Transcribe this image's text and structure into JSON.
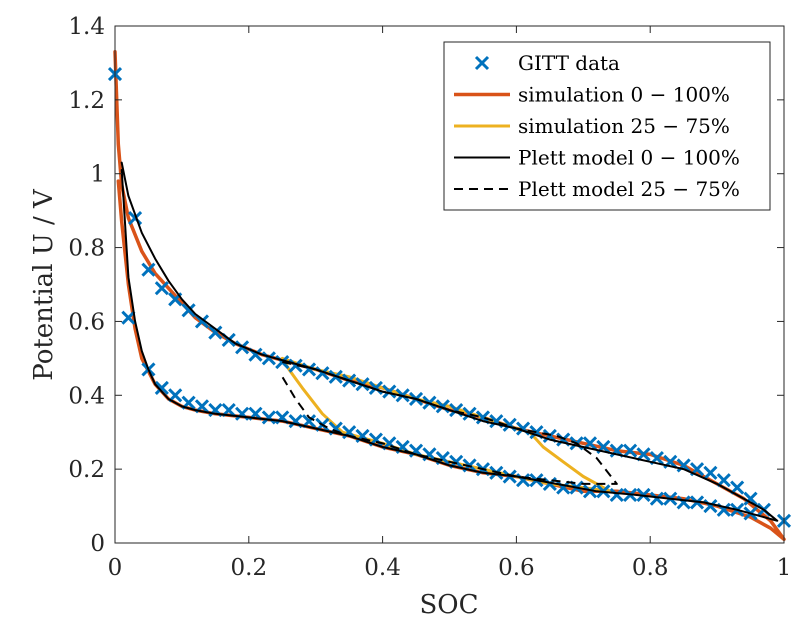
{
  "chart_data": {
    "type": "line",
    "title": "",
    "xlabel": "SOC",
    "ylabel": "Potential U / V",
    "xlim": [
      0,
      1
    ],
    "ylim": [
      0,
      1.4
    ],
    "xticks": [
      "0",
      "0.2",
      "0.4",
      "0.6",
      "0.8",
      "1"
    ],
    "yticks": [
      "0",
      "0.2",
      "0.4",
      "0.6",
      "0.8",
      "1",
      "1.2",
      "1.4"
    ],
    "grid": false,
    "legend_position": "top-right",
    "legend": [
      "GITT data",
      "simulation 0 − 100%",
      "simulation 25 − 75%",
      "Plett model 0 − 100%",
      "Plett model 25 − 75%"
    ],
    "series": [
      {
        "name": "GITT data",
        "style": "markers-x",
        "color": "#0072BD",
        "points": [
          [
            0.0,
            1.27
          ],
          [
            0.03,
            0.88
          ],
          [
            0.05,
            0.74
          ],
          [
            0.07,
            0.69
          ],
          [
            0.09,
            0.66
          ],
          [
            0.11,
            0.63
          ],
          [
            0.13,
            0.6
          ],
          [
            0.15,
            0.57
          ],
          [
            0.17,
            0.55
          ],
          [
            0.19,
            0.53
          ],
          [
            0.21,
            0.51
          ],
          [
            0.23,
            0.5
          ],
          [
            0.25,
            0.49
          ],
          [
            0.27,
            0.48
          ],
          [
            0.29,
            0.47
          ],
          [
            0.31,
            0.46
          ],
          [
            0.33,
            0.45
          ],
          [
            0.35,
            0.44
          ],
          [
            0.37,
            0.43
          ],
          [
            0.39,
            0.42
          ],
          [
            0.41,
            0.41
          ],
          [
            0.43,
            0.4
          ],
          [
            0.45,
            0.39
          ],
          [
            0.47,
            0.38
          ],
          [
            0.49,
            0.37
          ],
          [
            0.51,
            0.36
          ],
          [
            0.53,
            0.35
          ],
          [
            0.55,
            0.34
          ],
          [
            0.57,
            0.33
          ],
          [
            0.59,
            0.32
          ],
          [
            0.61,
            0.31
          ],
          [
            0.63,
            0.3
          ],
          [
            0.65,
            0.29
          ],
          [
            0.67,
            0.28
          ],
          [
            0.69,
            0.27
          ],
          [
            0.71,
            0.27
          ],
          [
            0.73,
            0.26
          ],
          [
            0.75,
            0.25
          ],
          [
            0.77,
            0.25
          ],
          [
            0.79,
            0.24
          ],
          [
            0.81,
            0.23
          ],
          [
            0.83,
            0.22
          ],
          [
            0.85,
            0.21
          ],
          [
            0.87,
            0.2
          ],
          [
            0.89,
            0.19
          ],
          [
            0.91,
            0.17
          ],
          [
            0.93,
            0.15
          ],
          [
            0.95,
            0.12
          ],
          [
            0.97,
            0.09
          ],
          [
            1.0,
            0.06
          ],
          [
            0.02,
            0.61
          ],
          [
            0.05,
            0.47
          ],
          [
            0.07,
            0.42
          ],
          [
            0.09,
            0.4
          ],
          [
            0.11,
            0.38
          ],
          [
            0.13,
            0.37
          ],
          [
            0.15,
            0.36
          ],
          [
            0.17,
            0.36
          ],
          [
            0.19,
            0.35
          ],
          [
            0.21,
            0.35
          ],
          [
            0.23,
            0.34
          ],
          [
            0.25,
            0.34
          ],
          [
            0.27,
            0.33
          ],
          [
            0.29,
            0.33
          ],
          [
            0.31,
            0.32
          ],
          [
            0.33,
            0.31
          ],
          [
            0.35,
            0.3
          ],
          [
            0.37,
            0.29
          ],
          [
            0.39,
            0.28
          ],
          [
            0.41,
            0.27
          ],
          [
            0.43,
            0.26
          ],
          [
            0.45,
            0.25
          ],
          [
            0.47,
            0.24
          ],
          [
            0.49,
            0.23
          ],
          [
            0.51,
            0.22
          ],
          [
            0.53,
            0.21
          ],
          [
            0.55,
            0.2
          ],
          [
            0.57,
            0.19
          ],
          [
            0.59,
            0.18
          ],
          [
            0.61,
            0.17
          ],
          [
            0.63,
            0.17
          ],
          [
            0.65,
            0.16
          ],
          [
            0.67,
            0.15
          ],
          [
            0.69,
            0.15
          ],
          [
            0.71,
            0.14
          ],
          [
            0.73,
            0.14
          ],
          [
            0.75,
            0.13
          ],
          [
            0.77,
            0.13
          ],
          [
            0.79,
            0.13
          ],
          [
            0.81,
            0.12
          ],
          [
            0.83,
            0.12
          ],
          [
            0.85,
            0.11
          ],
          [
            0.87,
            0.11
          ],
          [
            0.89,
            0.1
          ],
          [
            0.91,
            0.09
          ],
          [
            0.93,
            0.09
          ],
          [
            0.95,
            0.08
          ]
        ]
      },
      {
        "name": "simulation 0 − 100%",
        "style": "solid",
        "color": "#D95319",
        "width": 3.5,
        "points": [
          [
            0.0,
            1.33
          ],
          [
            0.005,
            1.08
          ],
          [
            0.01,
            0.97
          ],
          [
            0.02,
            0.88
          ],
          [
            0.04,
            0.79
          ],
          [
            0.06,
            0.73
          ],
          [
            0.08,
            0.69
          ],
          [
            0.1,
            0.65
          ],
          [
            0.12,
            0.61
          ],
          [
            0.15,
            0.57
          ],
          [
            0.18,
            0.54
          ],
          [
            0.22,
            0.51
          ],
          [
            0.26,
            0.49
          ],
          [
            0.3,
            0.47
          ],
          [
            0.35,
            0.44
          ],
          [
            0.4,
            0.42
          ],
          [
            0.45,
            0.39
          ],
          [
            0.5,
            0.36
          ],
          [
            0.55,
            0.34
          ],
          [
            0.6,
            0.31
          ],
          [
            0.65,
            0.29
          ],
          [
            0.7,
            0.27
          ],
          [
            0.75,
            0.25
          ],
          [
            0.8,
            0.24
          ],
          [
            0.85,
            0.21
          ],
          [
            0.88,
            0.18
          ],
          [
            0.91,
            0.15
          ],
          [
            0.94,
            0.12
          ],
          [
            0.96,
            0.09
          ],
          [
            0.98,
            0.06
          ],
          [
            1.0,
            0.01
          ],
          [
            0.98,
            0.04
          ],
          [
            0.95,
            0.07
          ],
          [
            0.9,
            0.1
          ],
          [
            0.85,
            0.12
          ],
          [
            0.8,
            0.13
          ],
          [
            0.75,
            0.14
          ],
          [
            0.7,
            0.14
          ],
          [
            0.65,
            0.16
          ],
          [
            0.6,
            0.18
          ],
          [
            0.55,
            0.19
          ],
          [
            0.5,
            0.21
          ],
          [
            0.45,
            0.24
          ],
          [
            0.4,
            0.26
          ],
          [
            0.35,
            0.29
          ],
          [
            0.3,
            0.31
          ],
          [
            0.25,
            0.33
          ],
          [
            0.2,
            0.34
          ],
          [
            0.15,
            0.35
          ],
          [
            0.12,
            0.36
          ],
          [
            0.1,
            0.37
          ],
          [
            0.08,
            0.39
          ],
          [
            0.06,
            0.43
          ],
          [
            0.04,
            0.5
          ],
          [
            0.03,
            0.58
          ],
          [
            0.02,
            0.7
          ],
          [
            0.01,
            0.87
          ],
          [
            0.005,
            0.98
          ]
        ]
      },
      {
        "name": "simulation 25 − 75%",
        "style": "solid",
        "color": "#EDB120",
        "width": 3,
        "points": [
          [
            0.25,
            0.5
          ],
          [
            0.3,
            0.47
          ],
          [
            0.35,
            0.45
          ],
          [
            0.4,
            0.42
          ],
          [
            0.45,
            0.39
          ],
          [
            0.5,
            0.37
          ],
          [
            0.55,
            0.34
          ],
          [
            0.6,
            0.31
          ],
          [
            0.62,
            0.3
          ],
          [
            0.64,
            0.26
          ],
          [
            0.67,
            0.22
          ],
          [
            0.7,
            0.18
          ],
          [
            0.74,
            0.14
          ],
          [
            0.7,
            0.15
          ],
          [
            0.65,
            0.16
          ],
          [
            0.6,
            0.18
          ],
          [
            0.55,
            0.2
          ],
          [
            0.5,
            0.22
          ],
          [
            0.45,
            0.24
          ],
          [
            0.4,
            0.27
          ],
          [
            0.36,
            0.29
          ],
          [
            0.34,
            0.3
          ],
          [
            0.31,
            0.35
          ],
          [
            0.28,
            0.42
          ],
          [
            0.26,
            0.47
          ],
          [
            0.25,
            0.5
          ]
        ]
      },
      {
        "name": "Plett model 0 − 100%",
        "style": "solid",
        "color": "#000000",
        "width": 2,
        "points": [
          [
            0.01,
            1.03
          ],
          [
            0.02,
            0.94
          ],
          [
            0.04,
            0.84
          ],
          [
            0.06,
            0.77
          ],
          [
            0.08,
            0.71
          ],
          [
            0.1,
            0.66
          ],
          [
            0.12,
            0.62
          ],
          [
            0.15,
            0.58
          ],
          [
            0.18,
            0.54
          ],
          [
            0.22,
            0.51
          ],
          [
            0.26,
            0.49
          ],
          [
            0.3,
            0.47
          ],
          [
            0.35,
            0.44
          ],
          [
            0.4,
            0.41
          ],
          [
            0.45,
            0.39
          ],
          [
            0.5,
            0.36
          ],
          [
            0.55,
            0.33
          ],
          [
            0.6,
            0.31
          ],
          [
            0.65,
            0.28
          ],
          [
            0.7,
            0.26
          ],
          [
            0.75,
            0.24
          ],
          [
            0.8,
            0.22
          ],
          [
            0.85,
            0.2
          ],
          [
            0.9,
            0.16
          ],
          [
            0.94,
            0.12
          ],
          [
            0.97,
            0.09
          ],
          [
            0.99,
            0.06
          ],
          [
            0.97,
            0.07
          ],
          [
            0.93,
            0.09
          ],
          [
            0.88,
            0.11
          ],
          [
            0.83,
            0.12
          ],
          [
            0.78,
            0.13
          ],
          [
            0.72,
            0.14
          ],
          [
            0.66,
            0.16
          ],
          [
            0.6,
            0.18
          ],
          [
            0.55,
            0.19
          ],
          [
            0.5,
            0.21
          ],
          [
            0.45,
            0.24
          ],
          [
            0.4,
            0.26
          ],
          [
            0.35,
            0.29
          ],
          [
            0.3,
            0.31
          ],
          [
            0.25,
            0.33
          ],
          [
            0.2,
            0.34
          ],
          [
            0.15,
            0.35
          ],
          [
            0.12,
            0.36
          ],
          [
            0.1,
            0.37
          ],
          [
            0.08,
            0.39
          ],
          [
            0.06,
            0.43
          ],
          [
            0.05,
            0.47
          ],
          [
            0.04,
            0.52
          ],
          [
            0.03,
            0.6
          ],
          [
            0.02,
            0.72
          ],
          [
            0.01,
            1.01
          ]
        ]
      },
      {
        "name": "Plett model 25 − 75%",
        "style": "dashed",
        "color": "#000000",
        "width": 2,
        "points": [
          [
            0.25,
            0.49
          ],
          [
            0.3,
            0.47
          ],
          [
            0.35,
            0.44
          ],
          [
            0.4,
            0.41
          ],
          [
            0.45,
            0.39
          ],
          [
            0.5,
            0.36
          ],
          [
            0.55,
            0.34
          ],
          [
            0.6,
            0.31
          ],
          [
            0.63,
            0.3
          ],
          [
            0.66,
            0.29
          ],
          [
            0.69,
            0.27
          ],
          [
            0.72,
            0.23
          ],
          [
            0.75,
            0.16
          ],
          [
            0.7,
            0.16
          ],
          [
            0.65,
            0.17
          ],
          [
            0.6,
            0.18
          ],
          [
            0.55,
            0.2
          ],
          [
            0.5,
            0.22
          ],
          [
            0.45,
            0.24
          ],
          [
            0.4,
            0.27
          ],
          [
            0.35,
            0.29
          ],
          [
            0.32,
            0.31
          ],
          [
            0.29,
            0.34
          ],
          [
            0.27,
            0.39
          ],
          [
            0.25,
            0.45
          ]
        ]
      }
    ]
  }
}
